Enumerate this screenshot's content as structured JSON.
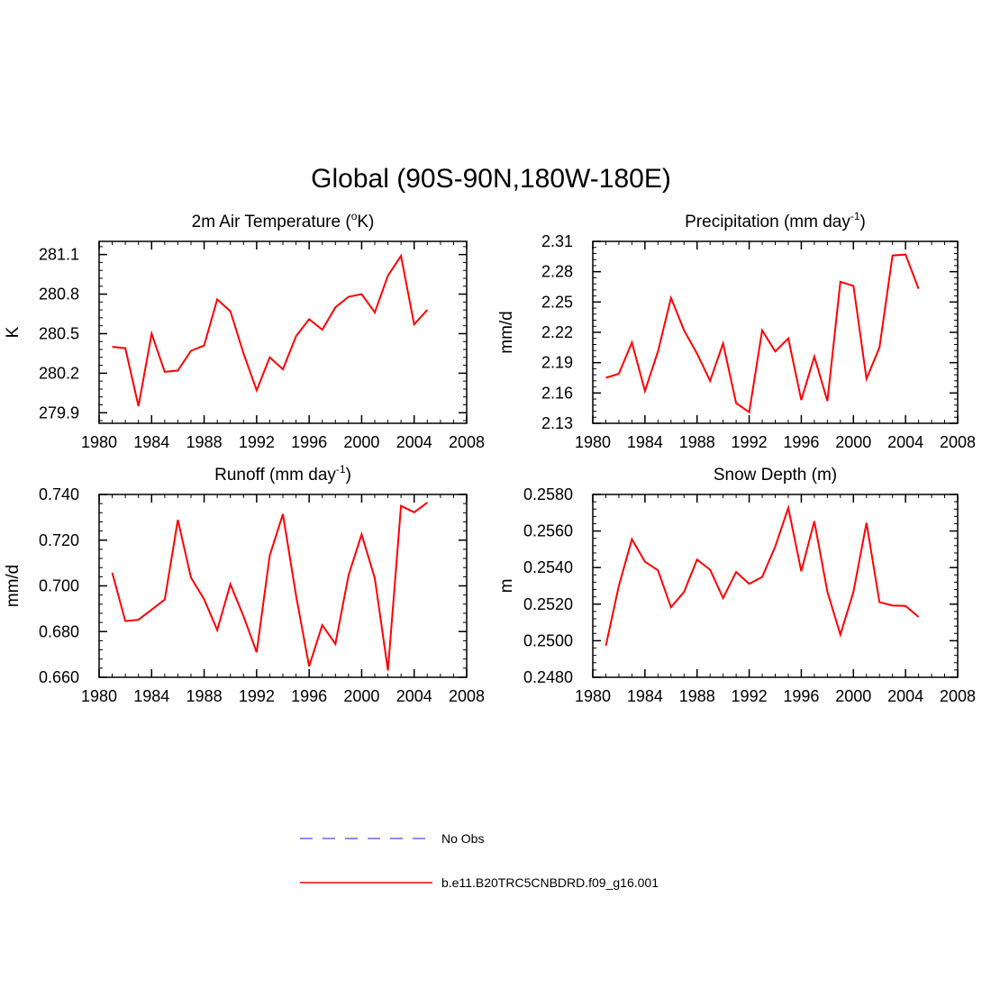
{
  "title": "Global (90S-90N,180W-180E)",
  "legend": [
    {
      "label": "No Obs",
      "color": "#6666ff",
      "style": "dashed"
    },
    {
      "label": "b.e11.B20TRC5CNBDRD.f09_g16.001",
      "color": "#ff0000",
      "style": "solid"
    }
  ],
  "chart_data": [
    {
      "type": "line",
      "title_main": "2m Air Temperature (",
      "title_sup": "o",
      "title_end": "K)",
      "ylabel": "K",
      "xlim": [
        1980,
        2008
      ],
      "xticks": [
        1980,
        1984,
        1988,
        1992,
        1996,
        2000,
        2004,
        2008
      ],
      "ylim": [
        279.82,
        281.2
      ],
      "yticks": [
        279.9,
        280.2,
        280.5,
        280.8,
        281.1
      ],
      "ytick_labels": [
        "279.9",
        "280.2",
        "280.5",
        "280.8",
        "281.1"
      ],
      "series": [
        {
          "name": "b.e11.B20TRC5CNBDRD.f09_g16.001",
          "color": "#ff0000",
          "x": [
            1981,
            1982,
            1983,
            1984,
            1985,
            1986,
            1987,
            1988,
            1989,
            1990,
            1991,
            1992,
            1993,
            1994,
            1995,
            1996,
            1997,
            1998,
            1999,
            2000,
            2001,
            2002,
            2003,
            2004,
            2005
          ],
          "values": [
            280.4,
            280.39,
            279.95,
            280.5,
            280.21,
            280.22,
            280.37,
            280.41,
            280.76,
            280.67,
            280.35,
            280.07,
            280.32,
            280.23,
            280.48,
            280.61,
            280.53,
            280.7,
            280.78,
            280.8,
            280.66,
            280.94,
            281.09,
            280.57,
            280.68
          ]
        }
      ]
    },
    {
      "type": "line",
      "title_main": "Precipitation (mm day",
      "title_sup": "-1",
      "title_end": ")",
      "ylabel": "mm/d",
      "xlim": [
        1980,
        2008
      ],
      "xticks": [
        1980,
        1984,
        1988,
        1992,
        1996,
        2000,
        2004,
        2008
      ],
      "ylim": [
        2.13,
        2.31
      ],
      "yticks": [
        2.13,
        2.16,
        2.19,
        2.22,
        2.25,
        2.28,
        2.31
      ],
      "ytick_labels": [
        "2.13",
        "2.16",
        "2.19",
        "2.22",
        "2.25",
        "2.28",
        "2.31"
      ],
      "series": [
        {
          "name": "b.e11.B20TRC5CNBDRD.f09_g16.001",
          "color": "#ff0000",
          "x": [
            1981,
            1982,
            1983,
            1984,
            1985,
            1986,
            1987,
            1988,
            1989,
            1990,
            1991,
            1992,
            1993,
            1994,
            1995,
            1996,
            1997,
            1998,
            1999,
            2000,
            2001,
            2002,
            2003,
            2004,
            2005
          ],
          "values": [
            2.175,
            2.179,
            2.21,
            2.162,
            2.201,
            2.254,
            2.222,
            2.199,
            2.172,
            2.209,
            2.15,
            2.141,
            2.222,
            2.201,
            2.214,
            2.153,
            2.196,
            2.152,
            2.27,
            2.266,
            2.174,
            2.205,
            2.296,
            2.297,
            2.263
          ]
        }
      ]
    },
    {
      "type": "line",
      "title_main": "Runoff (mm day",
      "title_sup": "-1",
      "title_end": ")",
      "ylabel": "mm/d",
      "xlim": [
        1980,
        2008
      ],
      "xticks": [
        1980,
        1984,
        1988,
        1992,
        1996,
        2000,
        2004,
        2008
      ],
      "ylim": [
        0.66,
        0.74
      ],
      "yticks": [
        0.66,
        0.68,
        0.7,
        0.72,
        0.74
      ],
      "ytick_labels": [
        "0.660",
        "0.680",
        "0.700",
        "0.720",
        "0.740"
      ],
      "series": [
        {
          "name": "b.e11.B20TRC5CNBDRD.f09_g16.001",
          "color": "#ff0000",
          "x": [
            1981,
            1982,
            1983,
            1984,
            1985,
            1986,
            1987,
            1988,
            1989,
            1990,
            1991,
            1992,
            1993,
            1994,
            1995,
            1996,
            1997,
            1998,
            1999,
            2000,
            2001,
            2002,
            2003,
            2004,
            2005
          ],
          "values": [
            0.7057,
            0.6846,
            0.6852,
            0.6896,
            0.694,
            0.7289,
            0.7036,
            0.6941,
            0.6807,
            0.7007,
            0.6867,
            0.6709,
            0.7133,
            0.7314,
            0.6958,
            0.6648,
            0.6828,
            0.6746,
            0.7047,
            0.7225,
            0.7034,
            0.663,
            0.735,
            0.7322,
            0.7364
          ]
        }
      ]
    },
    {
      "type": "line",
      "title_main": "Snow Depth (m)",
      "title_sup": "",
      "title_end": "",
      "ylabel": "m",
      "xlim": [
        1980,
        2008
      ],
      "xticks": [
        1980,
        1984,
        1988,
        1992,
        1996,
        2000,
        2004,
        2008
      ],
      "ylim": [
        0.248,
        0.258
      ],
      "yticks": [
        0.248,
        0.25,
        0.252,
        0.254,
        0.256,
        0.258
      ],
      "ytick_labels": [
        "0.2480",
        "0.2500",
        "0.2520",
        "0.2540",
        "0.2560",
        "0.2580"
      ],
      "series": [
        {
          "name": "b.e11.B20TRC5CNBDRD.f09_g16.001",
          "color": "#ff0000",
          "x": [
            1981,
            1982,
            1983,
            1984,
            1985,
            1986,
            1987,
            1988,
            1989,
            1990,
            1991,
            1992,
            1993,
            1994,
            1995,
            1996,
            1997,
            1998,
            1999,
            2000,
            2001,
            2002,
            2003,
            2004,
            2005
          ],
          "values": [
            0.24973,
            0.253,
            0.25555,
            0.25432,
            0.25385,
            0.25183,
            0.25267,
            0.25444,
            0.25388,
            0.25233,
            0.25376,
            0.25311,
            0.25349,
            0.25515,
            0.25727,
            0.2538,
            0.25653,
            0.25268,
            0.25033,
            0.25267,
            0.25645,
            0.25211,
            0.25192,
            0.2519,
            0.2513
          ]
        }
      ]
    }
  ]
}
